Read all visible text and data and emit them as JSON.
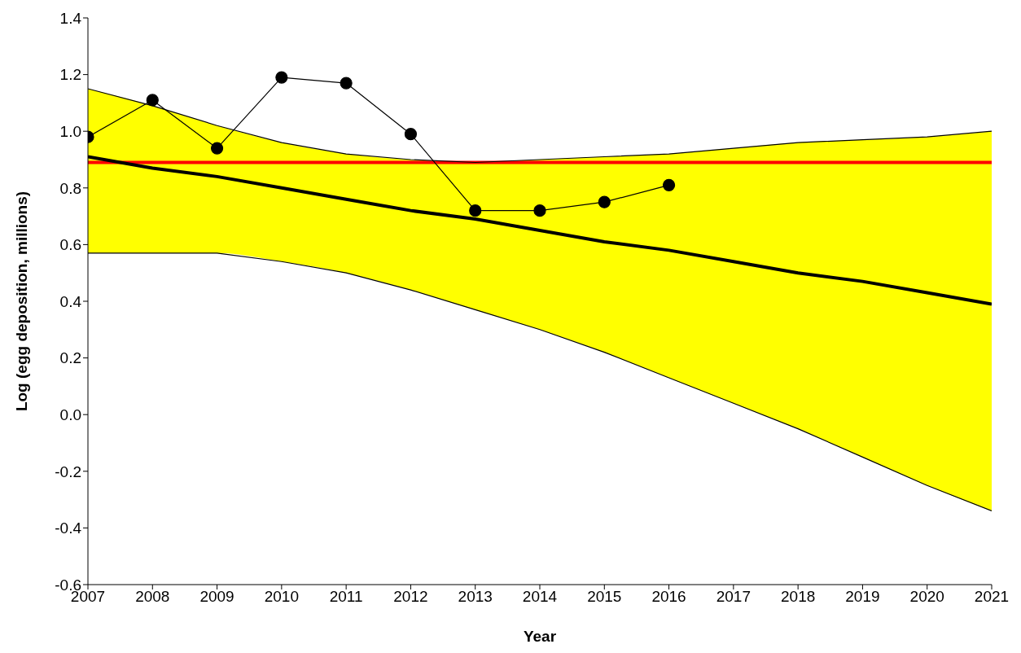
{
  "chart_data": {
    "type": "line",
    "xlabel": "Year",
    "ylabel": "Log (egg deposition, millions)",
    "xlim": [
      2007,
      2021
    ],
    "xticks": [
      2007,
      2008,
      2009,
      2010,
      2011,
      2012,
      2013,
      2014,
      2015,
      2016,
      2017,
      2018,
      2019,
      2020,
      2021
    ],
    "ylim": [
      -0.6,
      1.4
    ],
    "yticks": [
      {
        "value": -0.6,
        "label": "-0.6"
      },
      {
        "value": -0.4,
        "label": "-0.4"
      },
      {
        "value": -0.2,
        "label": "-0.2"
      },
      {
        "value": 0,
        "label": "0.0"
      },
      {
        "value": 0.2,
        "label": "0.2"
      },
      {
        "value": 0.4,
        "label": "0.4"
      },
      {
        "value": 0.6,
        "label": "0.6"
      },
      {
        "value": 0.8,
        "label": "0.8"
      },
      {
        "value": 1.0,
        "label": "1.0"
      },
      {
        "value": 1.2,
        "label": "1.2"
      },
      {
        "value": 1.4,
        "label": "1.4"
      }
    ],
    "grid": false,
    "legend": false,
    "series": [
      {
        "color": "#000000",
        "marker": "none",
        "x": [
          2007,
          2008,
          2009,
          2010,
          2011,
          2012,
          2013,
          2014,
          2015,
          2016,
          2017,
          2018,
          2019,
          2020,
          2021
        ],
        "values": [
          0.91,
          0.87,
          0.84,
          0.8,
          0.76,
          0.72,
          0.69,
          0.65,
          0.61,
          0.58,
          0.54,
          0.5,
          0.47,
          0.43,
          0.39
        ],
        "lower": [
          0.57,
          0.57,
          0.57,
          0.54,
          0.5,
          0.44,
          0.37,
          0.3,
          0.22,
          0.13,
          0.04,
          -0.05,
          -0.15,
          -0.25,
          -0.34
        ],
        "upper": [
          1.15,
          1.09,
          1.02,
          0.96,
          0.92,
          0.9,
          0.89,
          0.9,
          0.91,
          0.92,
          0.94,
          0.96,
          0.97,
          0.98,
          1.0
        ]
      },
      {
        "color": "#000000",
        "marker": "none",
        "x": [
          2007,
          2008,
          2009,
          2010,
          2011,
          2012,
          2013,
          2014,
          2015,
          2016,
          2017,
          2018,
          2019,
          2020,
          2021
        ],
        "values": [
          1.15,
          1.09,
          1.02,
          0.96,
          0.92,
          0.9,
          0.89,
          0.9,
          0.91,
          0.92,
          0.94,
          0.96,
          0.97,
          0.98,
          1.0
        ]
      },
      {
        "color": "#000000",
        "marker": "none",
        "x": [
          2007,
          2008,
          2009,
          2010,
          2011,
          2012,
          2013,
          2014,
          2015,
          2016,
          2017,
          2018,
          2019,
          2020,
          2021
        ],
        "values": [
          0.57,
          0.57,
          0.57,
          0.54,
          0.5,
          0.44,
          0.37,
          0.3,
          0.22,
          0.13,
          0.04,
          -0.05,
          -0.15,
          -0.25,
          -0.34
        ]
      },
      {
        "color": "#000000",
        "marker": "circle",
        "x": [
          2007,
          2008,
          2009,
          2010,
          2011,
          2012,
          2013,
          2014,
          2015,
          2016
        ],
        "values": [
          0.98,
          1.11,
          0.94,
          1.19,
          1.17,
          0.99,
          0.72,
          0.72,
          0.75,
          0.81
        ]
      }
    ],
    "ref_lines": [
      {
        "axis": "y",
        "value": 0.89,
        "color": "#ff0000"
      }
    ]
  }
}
